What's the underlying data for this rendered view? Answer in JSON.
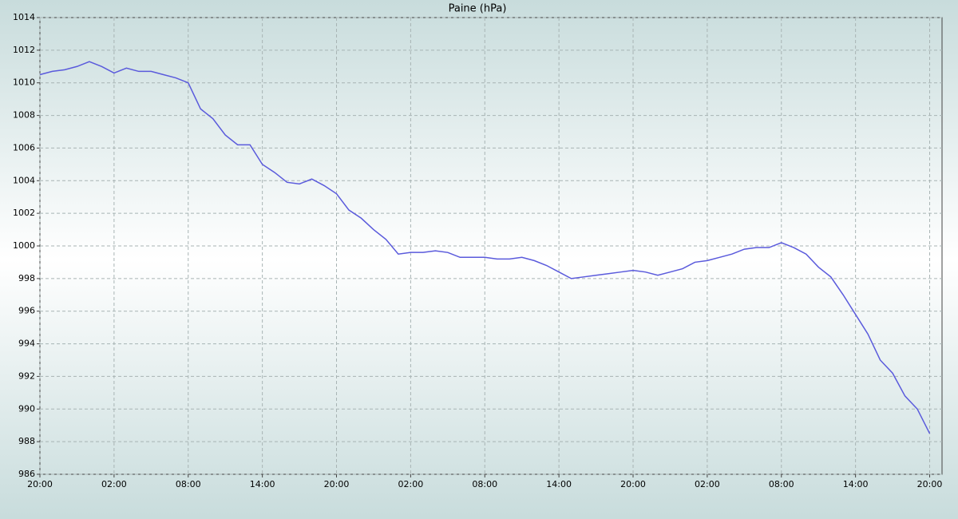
{
  "chart_data": {
    "type": "line",
    "title": "Paine (hPa)",
    "x": [
      0,
      1,
      2,
      3,
      4,
      5,
      6,
      7,
      8,
      9,
      10,
      11,
      12,
      13,
      14,
      15,
      16,
      17,
      18,
      19,
      20,
      21,
      22,
      23,
      24,
      25,
      26,
      27,
      28,
      29,
      30,
      31,
      32,
      33,
      34,
      35,
      36,
      37,
      38,
      39,
      40,
      41,
      42,
      43,
      44,
      45,
      46,
      47,
      48,
      49,
      50,
      51,
      52,
      53,
      54,
      55,
      56,
      57,
      58,
      59,
      60,
      61,
      62,
      63,
      64,
      65,
      66,
      67,
      68,
      69,
      70,
      71,
      72
    ],
    "series": [
      {
        "name": "Paine",
        "color": "#5a5adc",
        "values": [
          1010.5,
          1010.7,
          1010.8,
          1011.0,
          1011.3,
          1011.0,
          1010.6,
          1010.9,
          1010.7,
          1010.7,
          1010.5,
          1010.3,
          1010.0,
          1008.4,
          1007.8,
          1006.8,
          1006.2,
          1006.2,
          1005.0,
          1004.5,
          1003.9,
          1003.8,
          1004.1,
          1003.7,
          1003.2,
          1002.2,
          1001.7,
          1001.0,
          1000.4,
          999.5,
          999.6,
          999.6,
          999.7,
          999.6,
          999.3,
          999.3,
          999.3,
          999.2,
          999.2,
          999.3,
          999.1,
          998.8,
          998.4,
          998.0,
          998.1,
          998.2,
          998.3,
          998.4,
          998.5,
          998.4,
          998.2,
          998.4,
          998.6,
          999.0,
          999.1,
          999.3,
          999.5,
          999.8,
          999.9,
          999.9,
          1000.2,
          999.9,
          999.5,
          998.7,
          998.1,
          997.0,
          995.8,
          994.6,
          993.0,
          992.2,
          990.8,
          990.0,
          988.5
        ]
      }
    ],
    "xlim": [
      0,
      73
    ],
    "xticks": [
      {
        "value": 0,
        "label": "20:00"
      },
      {
        "value": 6,
        "label": "02:00"
      },
      {
        "value": 12,
        "label": "08:00"
      },
      {
        "value": 18,
        "label": "14:00"
      },
      {
        "value": 24,
        "label": "20:00"
      },
      {
        "value": 30,
        "label": "02:00"
      },
      {
        "value": 36,
        "label": "08:00"
      },
      {
        "value": 42,
        "label": "14:00"
      },
      {
        "value": 48,
        "label": "20:00"
      },
      {
        "value": 54,
        "label": "02:00"
      },
      {
        "value": 60,
        "label": "08:00"
      },
      {
        "value": 66,
        "label": "14:00"
      },
      {
        "value": 72,
        "label": "20:00"
      }
    ],
    "ylim": [
      986,
      1014
    ],
    "yticks": [
      986,
      988,
      990,
      992,
      994,
      996,
      998,
      1000,
      1002,
      1004,
      1006,
      1008,
      1010,
      1012,
      1014
    ],
    "grid": true
  }
}
